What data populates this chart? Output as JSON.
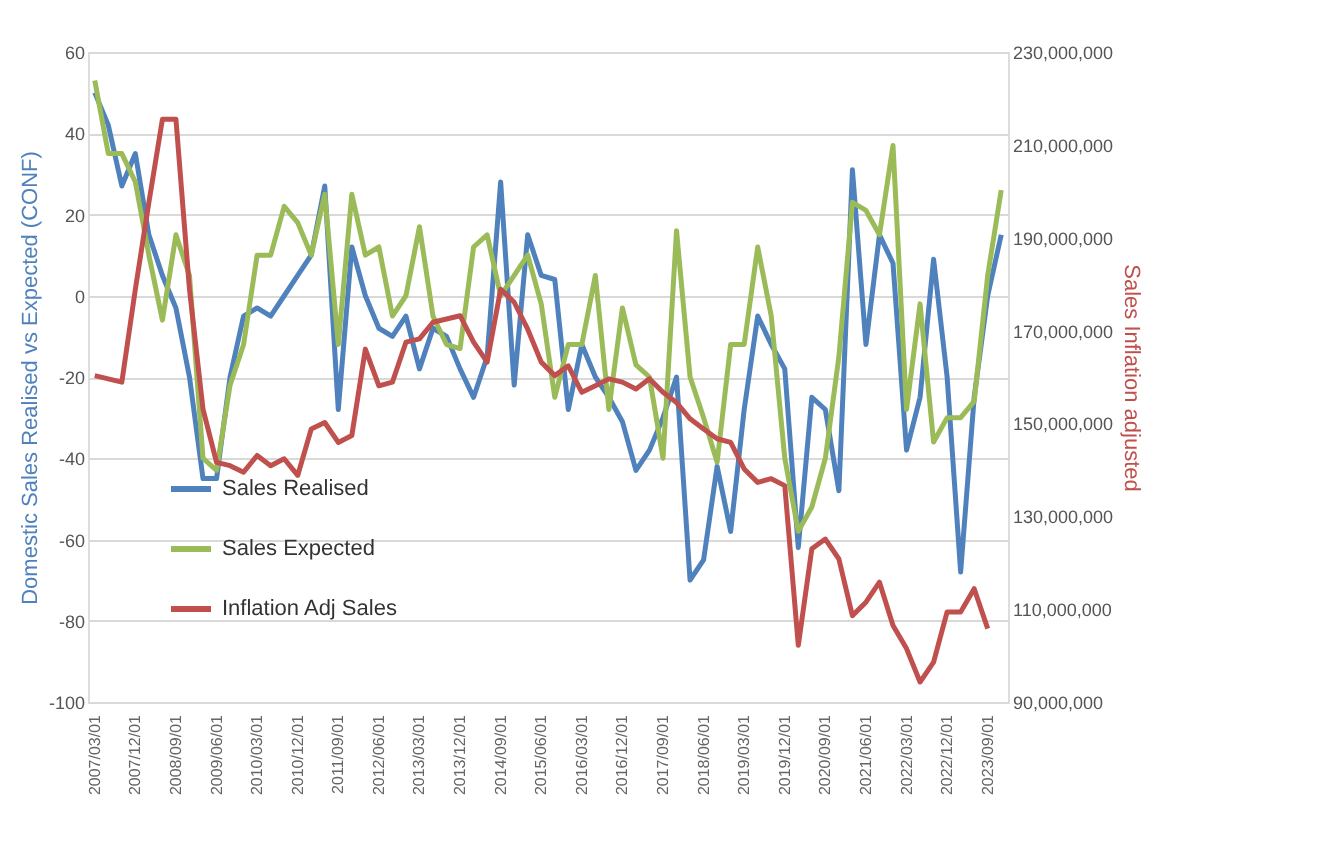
{
  "chart_data": {
    "type": "line",
    "categories": [
      "2007/03/01",
      null,
      null,
      "2007/12/01",
      null,
      null,
      "2008/09/01",
      null,
      null,
      "2009/06/01",
      null,
      null,
      "2010/03/01",
      null,
      null,
      "2010/12/01",
      null,
      null,
      "2011/09/01",
      null,
      null,
      "2012/06/01",
      null,
      null,
      "2013/03/01",
      null,
      null,
      "2013/12/01",
      null,
      null,
      "2014/09/01",
      null,
      null,
      "2015/06/01",
      null,
      null,
      "2016/03/01",
      null,
      null,
      "2016/12/01",
      null,
      null,
      "2017/09/01",
      null,
      null,
      "2018/06/01",
      null,
      null,
      "2019/03/01",
      null,
      null,
      "2019/12/01",
      null,
      null,
      "2020/09/01",
      null,
      null,
      "2021/06/01",
      null,
      null,
      "2022/03/01",
      null,
      null,
      "2022/12/01",
      null,
      null,
      "2023/09/01",
      null
    ],
    "ylabel": "Domestic Sales Realised vs Expected (CONF)",
    "y2label": "Sales Inflation adjusted",
    "ylim": [
      -100,
      60
    ],
    "yticks": [
      -100,
      -80,
      -60,
      -40,
      -20,
      0,
      20,
      40,
      60
    ],
    "y2lim": [
      90000000,
      230000000
    ],
    "y2ticks": [
      {
        "value": 90000000,
        "label": "90,000,000"
      },
      {
        "value": 110000000,
        "label": "110,000,000"
      },
      {
        "value": 130000000,
        "label": "130,000,000"
      },
      {
        "value": 150000000,
        "label": "150,000,000"
      },
      {
        "value": 170000000,
        "label": "170,000,000"
      },
      {
        "value": 190000000,
        "label": "190,000,000"
      },
      {
        "value": 210000000,
        "label": "210,000,000"
      },
      {
        "value": 230000000,
        "label": "230,000,000"
      }
    ],
    "grid": "y",
    "legend": "bottom left",
    "line_style": "solid",
    "marker": "none",
    "series": [
      {
        "name": "Sales Realised",
        "color": "#4f81bd",
        "values": [
          50,
          42,
          27,
          35,
          15,
          5,
          -3,
          -20,
          -45,
          -45,
          -20,
          -5,
          -3,
          -5,
          0,
          5,
          10,
          27,
          -28,
          12,
          0,
          -8,
          -10,
          -5,
          -18,
          -8,
          -10,
          -18,
          -25,
          -15,
          28,
          -22,
          15,
          5,
          4,
          -28,
          -12,
          -20,
          -25,
          -31,
          -43,
          -38,
          -30,
          -20,
          -70,
          -65,
          -42,
          -58,
          -28,
          -5,
          -12,
          -18,
          -62,
          -25,
          -28,
          -48,
          31,
          -12,
          15,
          8,
          -38,
          -25,
          9,
          -20,
          -68,
          -25,
          0,
          15
        ]
      },
      {
        "name": "Sales Expected",
        "color": "#9bbb59",
        "values": [
          53,
          35,
          35,
          28,
          10,
          -6,
          15,
          5,
          -40,
          -43,
          -22,
          -12,
          10,
          10,
          22,
          18,
          10,
          25,
          -12,
          25,
          10,
          12,
          -5,
          0,
          17,
          -5,
          -12,
          -13,
          12,
          15,
          0,
          5,
          10,
          -2,
          -25,
          -12,
          -12,
          5,
          -28,
          -3,
          -17,
          -20,
          -40,
          16,
          -20,
          -30,
          -41,
          -12,
          -12,
          12,
          -5,
          -40,
          -58,
          -52,
          -40,
          -15,
          23,
          21,
          15,
          37,
          -28,
          -2,
          -36,
          -30,
          -30,
          -26,
          5,
          26
        ]
      },
      {
        "name": "Inflation Adj Sales",
        "color": "#c0504d",
        "axis": "y2",
        "values": [
          160300000,
          159600000,
          158900000,
          178900000,
          197600000,
          215500000,
          215500000,
          178900000,
          153100000,
          141600000,
          140900000,
          139500000,
          143100000,
          140900000,
          142400000,
          138800000,
          148800000,
          150200000,
          145900000,
          147400000,
          166000000,
          158100000,
          158900000,
          167500000,
          168200000,
          171800000,
          172500000,
          173200000,
          167500000,
          163200000,
          178900000,
          176100000,
          170300000,
          163200000,
          160300000,
          162400000,
          156700000,
          158100000,
          159600000,
          158900000,
          157400000,
          159600000,
          156700000,
          154500000,
          151000000,
          148800000,
          146700000,
          145900000,
          140200000,
          137300000,
          138100000,
          136600000,
          102200000,
          123000000,
          125100000,
          120800000,
          108600000,
          111500000,
          115800000,
          106500000,
          101500000,
          94300000,
          98600000,
          109400000,
          109400000,
          114400000,
          105800000,
          null
        ]
      }
    ]
  }
}
